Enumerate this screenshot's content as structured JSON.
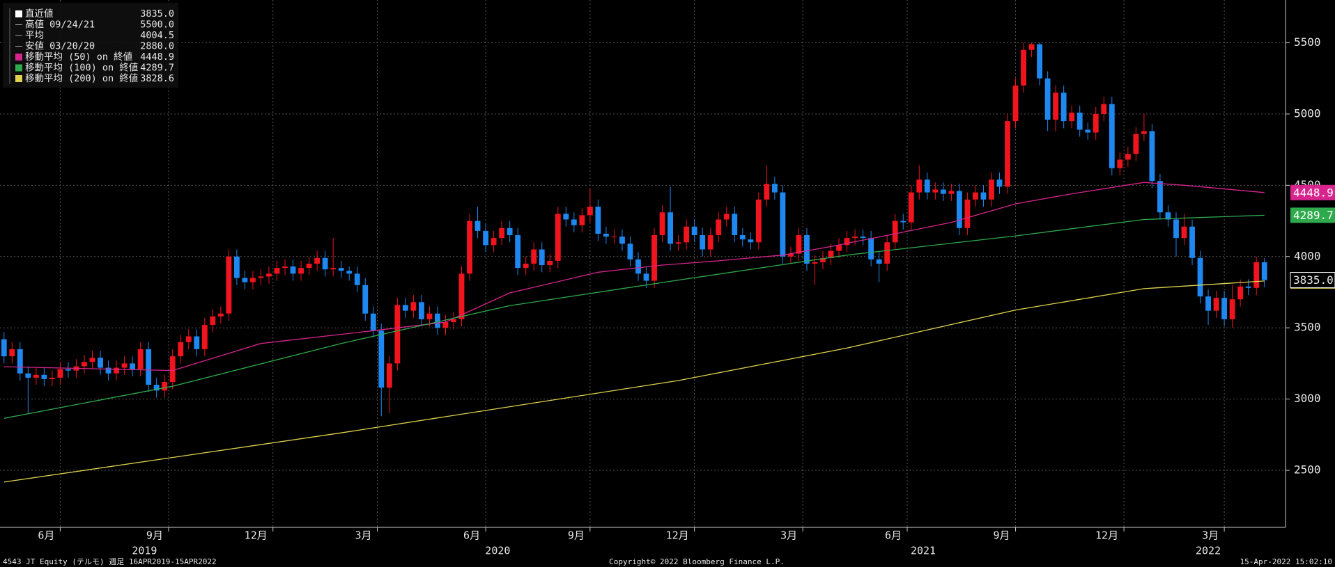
{
  "chart_data": {
    "type": "candlestick",
    "up_color": "#f0141e",
    "down_color": "#1e88f0",
    "open": [
      3420,
      3300,
      3350,
      3180,
      3150,
      3170,
      3140,
      3150,
      3210,
      3200,
      3230,
      3260,
      3290,
      3220,
      3180,
      3220,
      3250,
      3210,
      3350,
      3100,
      3060,
      3120,
      3300,
      3400,
      3440,
      3350,
      3520,
      3580,
      3600,
      4000,
      3850,
      3820,
      3850,
      3860,
      3880,
      3920,
      3930,
      3880,
      3920,
      3950,
      3990,
      3910,
      3920,
      3900,
      3880,
      3800,
      3600,
      3480,
      3080,
      3250,
      3660,
      3620,
      3680,
      3560,
      3600,
      3500,
      3540,
      3560,
      3880,
      4250,
      4180,
      4080,
      4130,
      4200,
      4150,
      3920,
      3950,
      4050,
      3940,
      3970,
      4300,
      4260,
      4220,
      4290,
      4350,
      4160,
      4140,
      4140,
      4090,
      3980,
      3880,
      3830,
      4150,
      4310,
      4090,
      4100,
      4210,
      4150,
      4050,
      4150,
      4260,
      4300,
      4150,
      4120,
      4100,
      4400,
      4510,
      4450,
      4000,
      4020,
      4150,
      3950,
      3960,
      3990,
      4040,
      4080,
      4130,
      4140,
      4130,
      3980,
      3950,
      4100,
      4250,
      4240,
      4450,
      4540,
      4450,
      4470,
      4440,
      4460,
      4200,
      4400,
      4450,
      4400,
      4540,
      4490,
      4950,
      5200,
      5450,
      5490,
      5250,
      4960,
      5150,
      4950,
      5010,
      4890,
      4870,
      5000,
      5070,
      4620,
      4680,
      4720,
      4860,
      4880,
      4530,
      4310,
      4260,
      4130,
      4210,
      3990,
      3720,
      3620,
      3710,
      3560,
      3700,
      3790,
      3780,
      3960
    ],
    "high": [
      3470,
      3400,
      3400,
      3230,
      3220,
      3220,
      3200,
      3260,
      3260,
      3280,
      3310,
      3340,
      3340,
      3270,
      3270,
      3300,
      3300,
      3400,
      3400,
      3150,
      3170,
      3350,
      3450,
      3490,
      3490,
      3570,
      3630,
      3650,
      4050,
      4050,
      3900,
      3900,
      3910,
      3930,
      3970,
      3980,
      3980,
      3970,
      4000,
      4040,
      4040,
      4130,
      3970,
      3930,
      3930,
      3850,
      3650,
      3530,
      3300,
      3710,
      3710,
      3730,
      3730,
      3650,
      3650,
      3590,
      3610,
      3930,
      4300,
      4350,
      4230,
      4180,
      4250,
      4250,
      4200,
      4000,
      4100,
      4100,
      4020,
      4350,
      4350,
      4310,
      4340,
      4480,
      4400,
      4210,
      4190,
      4190,
      4140,
      4030,
      3930,
      4200,
      4360,
      4490,
      4150,
      4260,
      4260,
      4200,
      4200,
      4310,
      4350,
      4350,
      4200,
      4170,
      4450,
      4640,
      4560,
      4500,
      4070,
      4200,
      4200,
      4010,
      4040,
      4090,
      4130,
      4180,
      4190,
      4190,
      4180,
      4030,
      4150,
      4300,
      4300,
      4500,
      4640,
      4590,
      4520,
      4520,
      4510,
      4510,
      4450,
      4500,
      4500,
      4590,
      4590,
      5000,
      5250,
      5500,
      5500,
      5500,
      5300,
      5200,
      5200,
      5060,
      5060,
      4940,
      5050,
      5120,
      5120,
      4730,
      4770,
      4910,
      5000,
      4930,
      4580,
      4360,
      4310,
      4300,
      4260,
      4040,
      3770,
      3760,
      3760,
      3800,
      3840,
      3840,
      4000,
      3990
    ],
    "low": [
      3250,
      3250,
      3130,
      2900,
      3100,
      3090,
      3090,
      3100,
      3150,
      3150,
      3180,
      3210,
      3170,
      3130,
      3130,
      3170,
      3160,
      3160,
      3050,
      3010,
      3010,
      3070,
      3250,
      3350,
      3300,
      3300,
      3470,
      3530,
      3550,
      3800,
      3770,
      3770,
      3800,
      3810,
      3830,
      3870,
      3830,
      3830,
      3870,
      3900,
      3860,
      3860,
      3850,
      3830,
      3750,
      3550,
      3430,
      2880,
      2900,
      3200,
      3570,
      3570,
      3510,
      3510,
      3450,
      3450,
      3490,
      3510,
      3830,
      4130,
      4030,
      4030,
      4080,
      4100,
      3870,
      3870,
      3900,
      3890,
      3890,
      3920,
      4210,
      4170,
      4170,
      4240,
      4110,
      4090,
      4090,
      4040,
      3930,
      3830,
      3780,
      3780,
      4100,
      4040,
      4040,
      4050,
      4100,
      4000,
      4000,
      4100,
      4210,
      4100,
      4070,
      4050,
      4050,
      4350,
      4400,
      3950,
      3950,
      3970,
      3900,
      3800,
      3910,
      3940,
      3990,
      4030,
      4080,
      4080,
      3930,
      3820,
      3900,
      4050,
      4190,
      4190,
      4400,
      4400,
      4400,
      4390,
      4390,
      4150,
      4150,
      4350,
      4350,
      4350,
      4440,
      4440,
      4900,
      5150,
      5400,
      5200,
      4880,
      4880,
      4900,
      4900,
      4840,
      4820,
      4820,
      4950,
      4570,
      4570,
      4630,
      4670,
      4810,
      4480,
      4260,
      4210,
      4000,
      4080,
      3940,
      3670,
      3520,
      3570,
      3510,
      3500,
      3650,
      3730,
      3730,
      3785
    ],
    "close": [
      3300,
      3350,
      3180,
      3150,
      3170,
      3140,
      3150,
      3210,
      3200,
      3230,
      3260,
      3290,
      3220,
      3180,
      3220,
      3250,
      3210,
      3350,
      3100,
      3060,
      3120,
      3300,
      3400,
      3440,
      3350,
      3520,
      3580,
      3600,
      4000,
      3850,
      3820,
      3850,
      3860,
      3880,
      3920,
      3930,
      3880,
      3920,
      3950,
      3990,
      3910,
      3920,
      3900,
      3880,
      3800,
      3600,
      3480,
      3080,
      3250,
      3660,
      3620,
      3680,
      3560,
      3600,
      3500,
      3540,
      3560,
      3880,
      4250,
      4180,
      4080,
      4130,
      4200,
      4150,
      3920,
      3950,
      4050,
      3940,
      3970,
      4300,
      4260,
      4220,
      4290,
      4350,
      4160,
      4140,
      4140,
      4090,
      3980,
      3880,
      3830,
      4150,
      4310,
      4090,
      4100,
      4210,
      4150,
      4050,
      4150,
      4260,
      4300,
      4150,
      4120,
      4100,
      4400,
      4510,
      4450,
      4000,
      4020,
      4150,
      3950,
      3960,
      3990,
      4040,
      4080,
      4130,
      4140,
      4130,
      3980,
      3950,
      4100,
      4250,
      4240,
      4450,
      4540,
      4450,
      4470,
      4440,
      4460,
      4200,
      4400,
      4450,
      4400,
      4540,
      4490,
      4950,
      5200,
      5450,
      5490,
      5250,
      4960,
      5150,
      4950,
      5010,
      4890,
      4870,
      5000,
      5070,
      4620,
      4680,
      4720,
      4860,
      4880,
      4530,
      4310,
      4260,
      4130,
      4210,
      3990,
      3720,
      3620,
      3710,
      3560,
      3700,
      3790,
      3780,
      3960,
      3835
    ],
    "moving_averages": [
      {
        "name": "移動平均 (50) on 終値",
        "color": "#d8258e",
        "value_label": "4448.9",
        "x": [
          0,
          21,
          32,
          46,
          55,
          63,
          74,
          82,
          89,
          97,
          103,
          111,
          118,
          126,
          133,
          142,
          147,
          157
        ],
        "values": [
          3227,
          3200,
          3390,
          3480,
          3540,
          3745,
          3890,
          3940,
          3970,
          4010,
          4070,
          4160,
          4240,
          4370,
          4440,
          4520,
          4500,
          4448.9
        ]
      },
      {
        "name": "移動平均 (100) on 終値",
        "color": "#2eaa4c",
        "value_label": "4289.7",
        "x": [
          0,
          21,
          42,
          63,
          84,
          105,
          126,
          142,
          157
        ],
        "values": [
          2865,
          3090,
          3390,
          3655,
          3835,
          4010,
          4145,
          4260,
          4289.7
        ]
      },
      {
        "name": "移動平均 (200) on 終値",
        "color": "#e0d24e",
        "value_label": "3828.6",
        "x": [
          0,
          42,
          84,
          105,
          126,
          142,
          157
        ],
        "values": [
          2418,
          2763,
          3130,
          3358,
          3625,
          3775,
          3828.6
        ]
      }
    ],
    "legend": [
      {
        "name": "直近値",
        "value_label": "3835.0"
      },
      {
        "name": "高値 09/24/21",
        "value_label": "5500.0"
      },
      {
        "name": "平均",
        "value_label": "4004.5"
      },
      {
        "name": "安値 03/20/20",
        "value_label": "2880.0"
      }
    ],
    "ylim": [
      2100,
      5800
    ],
    "yticks": [
      2500,
      3000,
      3500,
      4000,
      4500,
      5000,
      5500
    ],
    "xlim": [
      -0.5,
      158.5
    ],
    "xticks": [
      {
        "value": 7,
        "label": "6月"
      },
      {
        "value": 20.5,
        "label": "9月"
      },
      {
        "value": 33.5,
        "label": "12月"
      },
      {
        "value": 46.5,
        "label": "3月"
      },
      {
        "value": 60,
        "label": "6月"
      },
      {
        "value": 73,
        "label": "9月"
      },
      {
        "value": 86,
        "label": "12月"
      },
      {
        "value": 99.5,
        "label": "3月"
      },
      {
        "value": 112.5,
        "label": "6月"
      },
      {
        "value": 126,
        "label": "9月"
      },
      {
        "value": 139.5,
        "label": "12月"
      },
      {
        "value": 152,
        "label": "3月"
      }
    ],
    "year_labels": [
      {
        "value": 17.5,
        "label": "2019"
      },
      {
        "value": 61.5,
        "label": "2020"
      },
      {
        "value": 114.5,
        "label": "2021"
      },
      {
        "value": 150,
        "label": "2022"
      }
    ],
    "grid": true
  },
  "footer": {
    "left": "4543 JT Equity (テルモ)  週足 16APR2019-15APR2022",
    "center": "Copyright© 2022 Bloomberg Finance L.P.",
    "right": "15-Apr-2022 15:02:10"
  }
}
